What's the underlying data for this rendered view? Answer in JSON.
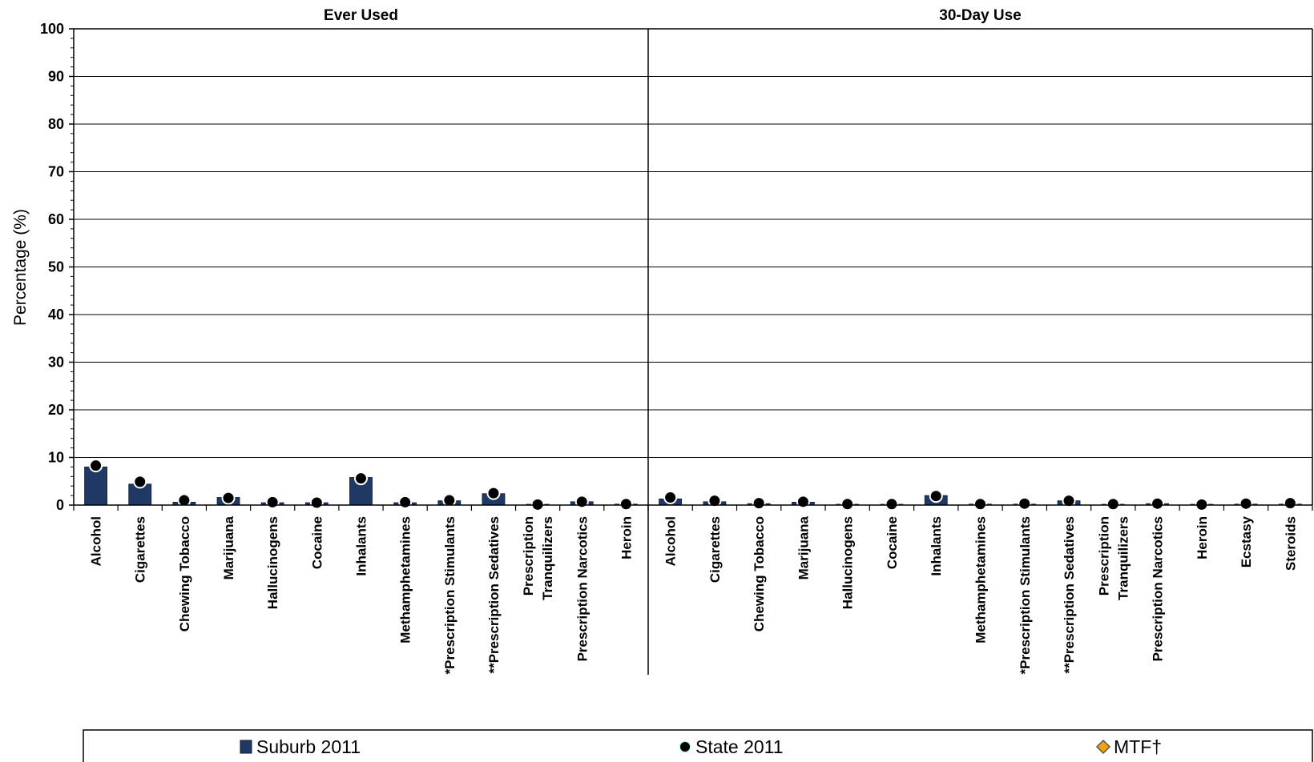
{
  "chart_data": {
    "type": "bar",
    "ylabel": "Percentage (%)",
    "ylim": [
      0,
      100
    ],
    "yticks": [
      0,
      10,
      20,
      30,
      40,
      50,
      60,
      70,
      80,
      90,
      100
    ],
    "grid": true,
    "legend_position": "bottom",
    "legend": [
      {
        "label": "Suburb 2011",
        "marker": "bar",
        "color": "#1f3864"
      },
      {
        "label": "State 2011",
        "marker": "circle",
        "color": "#000000"
      },
      {
        "label": "MTF†",
        "marker": "diamond",
        "color": "#f0a30a"
      }
    ],
    "panels": [
      {
        "title": "Ever Used",
        "categories": [
          "Alcohol",
          "Cigarettes",
          "Chewing Tobacco",
          "Marijuana",
          "Hallucinogens",
          "Cocaine",
          "Inhalants",
          "Methamphetamines",
          "*Prescription Stimulants",
          "**Prescription Sedatives",
          "Prescription Tranquilizers",
          "Prescription Narcotics",
          "Heroin"
        ],
        "series": [
          {
            "name": "Suburb 2011",
            "type": "bar",
            "values": [
              8.0,
              4.4,
              0.6,
              1.6,
              0.5,
              0.5,
              5.8,
              0.5,
              0.9,
              2.4,
              0.1,
              0.7,
              0.2
            ]
          },
          {
            "name": "State 2011",
            "type": "point",
            "values": [
              8.3,
              4.9,
              1.0,
              1.5,
              0.6,
              0.5,
              5.6,
              0.6,
              1.0,
              2.5,
              0.1,
              0.7,
              0.2
            ]
          }
        ]
      },
      {
        "title": "30-Day Use",
        "categories": [
          "Alcohol",
          "Cigarettes",
          "Chewing Tobacco",
          "Marijuana",
          "Hallucinogens",
          "Cocaine",
          "Inhalants",
          "Methamphetamines",
          "*Prescription Stimulants",
          "**Prescription Sedatives",
          "Prescription Tranquilizers",
          "Prescription Narcotics",
          "Heroin",
          "Ecstasy",
          "Steroids"
        ],
        "series": [
          {
            "name": "Suburb 2011",
            "type": "bar",
            "values": [
              1.3,
              0.7,
              0.3,
              0.6,
              0.1,
              0.1,
              2.0,
              0.2,
              0.2,
              0.9,
              0.1,
              0.3,
              0.1,
              0.2,
              0.2
            ]
          },
          {
            "name": "State 2011",
            "type": "point",
            "values": [
              1.6,
              0.9,
              0.4,
              0.7,
              0.2,
              0.2,
              1.9,
              0.2,
              0.3,
              0.9,
              0.2,
              0.3,
              0.1,
              0.3,
              0.4
            ]
          }
        ]
      }
    ]
  }
}
